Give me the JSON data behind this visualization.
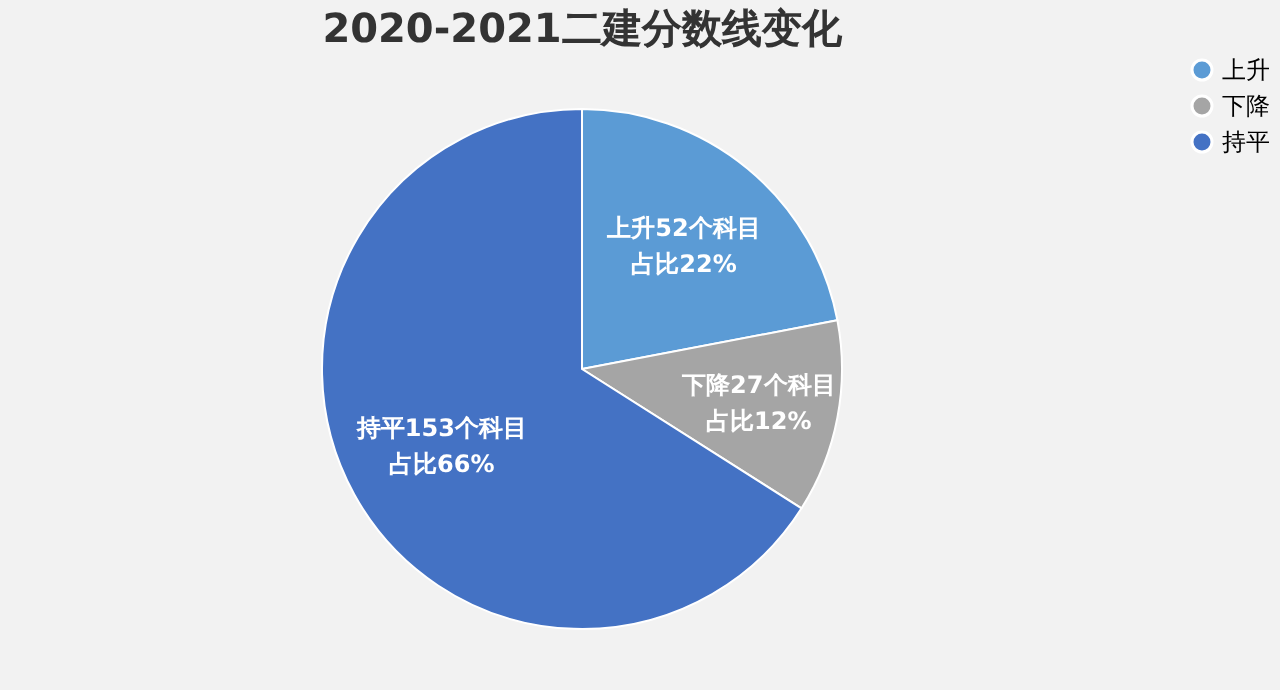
{
  "chart_data": {
    "type": "pie",
    "title": "2020-2021二建分数线变化",
    "categories": [
      "上升",
      "下降",
      "持平"
    ],
    "values": [
      22,
      12,
      66
    ],
    "colors": [
      "#5b9bd5",
      "#a5a5a5",
      "#4472c4"
    ],
    "value_labels": [
      [
        "上升52个科目",
        "占比22%"
      ],
      [
        "下降27个科目",
        "占比12%"
      ],
      [
        "持平153个科目",
        "占比66%"
      ]
    ],
    "legend": "right"
  }
}
